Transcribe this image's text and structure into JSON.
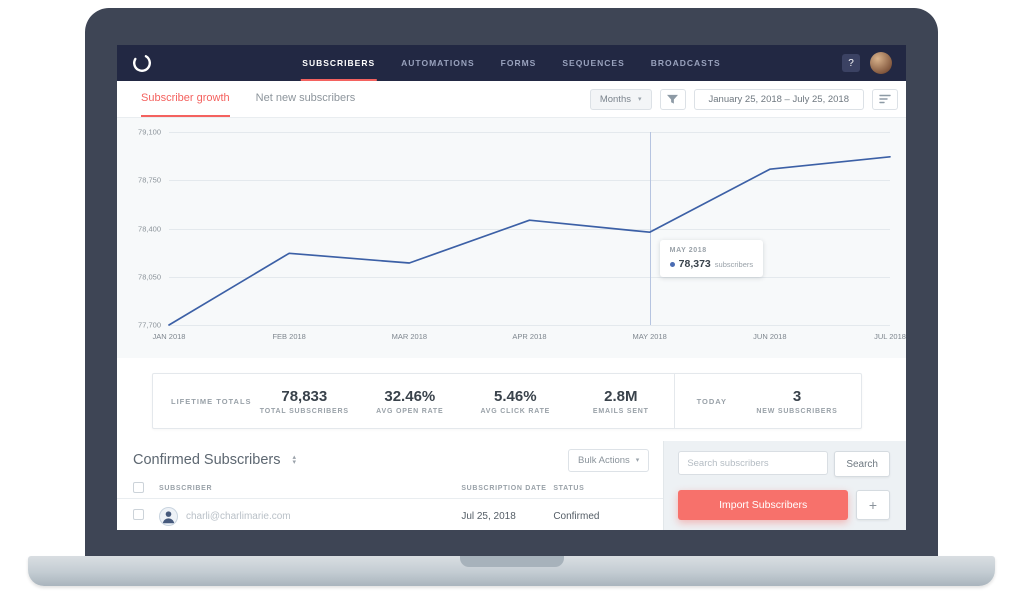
{
  "nav": {
    "items": [
      {
        "label": "SUBSCRIBERS"
      },
      {
        "label": "AUTOMATIONS"
      },
      {
        "label": "FORMS"
      },
      {
        "label": "SEQUENCES"
      },
      {
        "label": "BROADCASTS"
      }
    ],
    "help": "?"
  },
  "tabs": {
    "growth": "Subscriber growth",
    "net_new": "Net new subscribers"
  },
  "controls": {
    "period": "Months",
    "date_range": "January 25, 2018  –  July 25, 2018"
  },
  "chart_data": {
    "type": "line",
    "title": "Subscriber growth",
    "x": [
      "JAN 2018",
      "FEB 2018",
      "MAR 2018",
      "APR 2018",
      "MAY 2018",
      "JUN 2018",
      "JUL 2018"
    ],
    "values": [
      77700,
      78220,
      78150,
      78460,
      78373,
      78830,
      78920
    ],
    "ylim": [
      77700,
      79100
    ],
    "yticks": [
      79100,
      78750,
      78400,
      78050,
      77700
    ],
    "ytick_labels": [
      "79,100",
      "78,750",
      "78,400",
      "78,050",
      "77,700"
    ],
    "line_color": "#3c60a6",
    "grid": true,
    "legend": false,
    "marker_index": 4,
    "tooltip": {
      "title": "MAY 2018",
      "value": "78,373",
      "unit": "subscribers"
    }
  },
  "stats": {
    "lifetime_label": "LIFETIME TOTALS",
    "items": [
      {
        "value": "78,833",
        "label": "TOTAL SUBSCRIBERS"
      },
      {
        "value": "32.46%",
        "label": "AVG OPEN RATE"
      },
      {
        "value": "5.46%",
        "label": "AVG CLICK RATE"
      },
      {
        "value": "2.8M",
        "label": "EMAILS SENT"
      }
    ],
    "today_label": "TODAY",
    "today": {
      "value": "3",
      "label": "NEW SUBSCRIBERS"
    }
  },
  "subscribers": {
    "title": "Confirmed Subscribers",
    "bulk_actions": "Bulk Actions",
    "search_placeholder": "Search subscribers",
    "search_button": "Search",
    "import_button": "Import Subscribers",
    "add_button": "+",
    "columns": [
      "SUBSCRIBER",
      "SUBSCRIPTION DATE",
      "STATUS"
    ],
    "rows": [
      {
        "email": "charli@charlimarie.com",
        "date": "Jul 25, 2018",
        "status": "Confirmed"
      }
    ]
  },
  "colors": {
    "accent_red": "#f4625f",
    "import_salmon": "#f7716b",
    "navy": "#222843",
    "chart_line": "#3c60a6"
  }
}
